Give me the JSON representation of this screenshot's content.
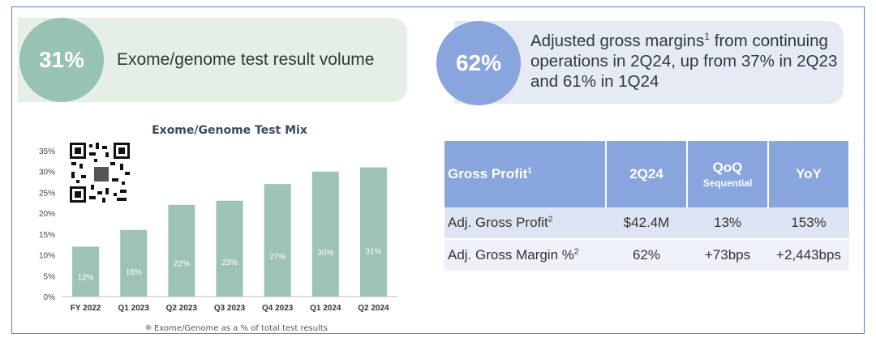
{
  "stats": {
    "left": {
      "value": "31%",
      "text": "Exome/genome test result volume"
    },
    "right": {
      "value": "62%",
      "text_part1": "Adjusted gross margins",
      "sup": "1",
      "text_part2": " from continuing operations in 2Q24, up from 37% in 2Q23 and 61% in 1Q24"
    }
  },
  "chart_data": {
    "type": "bar",
    "title": "Exome/Genome Test Mix",
    "categories": [
      "FY 2022",
      "Q1 2023",
      "Q2 2023",
      "Q3 2023",
      "Q4 2023",
      "Q1 2024",
      "Q2 2024"
    ],
    "values": [
      12,
      16,
      22,
      23,
      27,
      30,
      31
    ],
    "data_labels": [
      "12%",
      "16%",
      "22%",
      "23%",
      "27%",
      "30%",
      "31%"
    ],
    "ylim": [
      0,
      35
    ],
    "yticks": [
      "0%",
      "5%",
      "10%",
      "15%",
      "20%",
      "25%",
      "30%",
      "35%"
    ],
    "legend": "Exome/Genome as a % of total test results",
    "bar_color": "#9ec3b6"
  },
  "table": {
    "headers": {
      "label": "Gross Profit",
      "label_sup": "1",
      "col2": "2Q24",
      "col3": "QoQ",
      "col3_sub": "Sequential",
      "col4": "YoY"
    },
    "rows": [
      {
        "label": "Adj. Gross Profit",
        "sup": "2",
        "v2": "$42.4M",
        "v3": "13%",
        "v4": "153%"
      },
      {
        "label": "Adj. Gross Margin %",
        "sup": "2",
        "v2": "62%",
        "v3": "+73bps",
        "v4": "+2,443bps"
      }
    ]
  }
}
